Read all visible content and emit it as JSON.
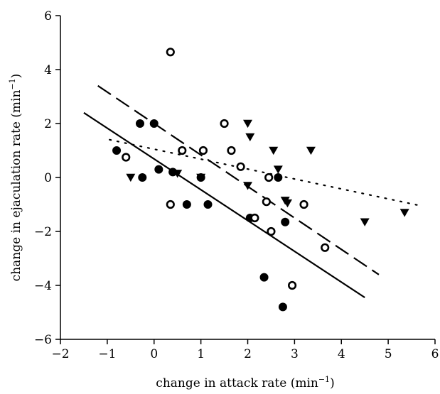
{
  "chart_data": {
    "type": "scatter",
    "title": "",
    "xlabel": {
      "text": "change in attack rate (min",
      "sup": "−1",
      "close": ")"
    },
    "ylabel": {
      "text": "change in ejaculation rate (min",
      "sup": "−1",
      "close": ")"
    },
    "xlim": [
      -2,
      6
    ],
    "ylim": [
      -6,
      6
    ],
    "xticks": [
      -2,
      -1,
      0,
      1,
      2,
      3,
      4,
      5,
      6
    ],
    "yticks": [
      -6,
      -4,
      -2,
      0,
      2,
      4,
      6
    ],
    "xtick_labels": [
      "−2",
      "−1",
      "0",
      "1",
      "2",
      "3",
      "4",
      "5",
      "6"
    ],
    "ytick_labels": [
      "−6",
      "−4",
      "−2",
      "0",
      "2",
      "4",
      "6"
    ],
    "grid": false,
    "legend": false,
    "series": [
      {
        "marker": "filled-circle",
        "points": [
          [
            -0.8,
            1.0
          ],
          [
            -0.3,
            2.0
          ],
          [
            -0.25,
            0.0
          ],
          [
            0.0,
            2.0
          ],
          [
            0.1,
            0.3
          ],
          [
            0.4,
            0.2
          ],
          [
            0.7,
            -1.0
          ],
          [
            1.0,
            0.0
          ],
          [
            1.15,
            -1.0
          ],
          [
            2.05,
            -1.5
          ],
          [
            2.35,
            -3.7
          ],
          [
            2.65,
            0.0
          ],
          [
            2.75,
            -4.8
          ],
          [
            2.8,
            -1.65
          ]
        ]
      },
      {
        "marker": "open-circle",
        "points": [
          [
            -0.6,
            0.75
          ],
          [
            0.35,
            4.65
          ],
          [
            0.35,
            -1.0
          ],
          [
            0.6,
            1.0
          ],
          [
            1.05,
            1.0
          ],
          [
            1.5,
            2.0
          ],
          [
            1.65,
            1.0
          ],
          [
            1.85,
            0.4
          ],
          [
            2.15,
            -1.5
          ],
          [
            2.4,
            -0.9
          ],
          [
            2.45,
            0.0
          ],
          [
            2.5,
            -2.0
          ],
          [
            2.95,
            -4.0
          ],
          [
            3.2,
            -1.0
          ],
          [
            3.65,
            -2.6
          ]
        ]
      },
      {
        "marker": "filled-triangle-down",
        "points": [
          [
            -0.5,
            0.0
          ],
          [
            0.5,
            0.15
          ],
          [
            1.0,
            0.0
          ],
          [
            2.0,
            2.0
          ],
          [
            2.05,
            1.5
          ],
          [
            2.0,
            -0.3
          ],
          [
            2.55,
            1.0
          ],
          [
            2.65,
            0.3
          ],
          [
            2.8,
            -0.85
          ],
          [
            2.85,
            -0.95
          ],
          [
            3.35,
            1.0
          ],
          [
            4.5,
            -1.65
          ],
          [
            5.35,
            -1.3
          ]
        ]
      }
    ],
    "fit_lines": [
      {
        "style": "solid",
        "x": [
          -1.5,
          4.5
        ],
        "y": [
          2.4,
          -4.45
        ]
      },
      {
        "style": "dashed",
        "x": [
          -1.2,
          4.8
        ],
        "y": [
          3.4,
          -3.6
        ]
      },
      {
        "style": "dotted",
        "x": [
          -0.95,
          5.7
        ],
        "y": [
          1.4,
          -1.05
        ]
      }
    ]
  }
}
